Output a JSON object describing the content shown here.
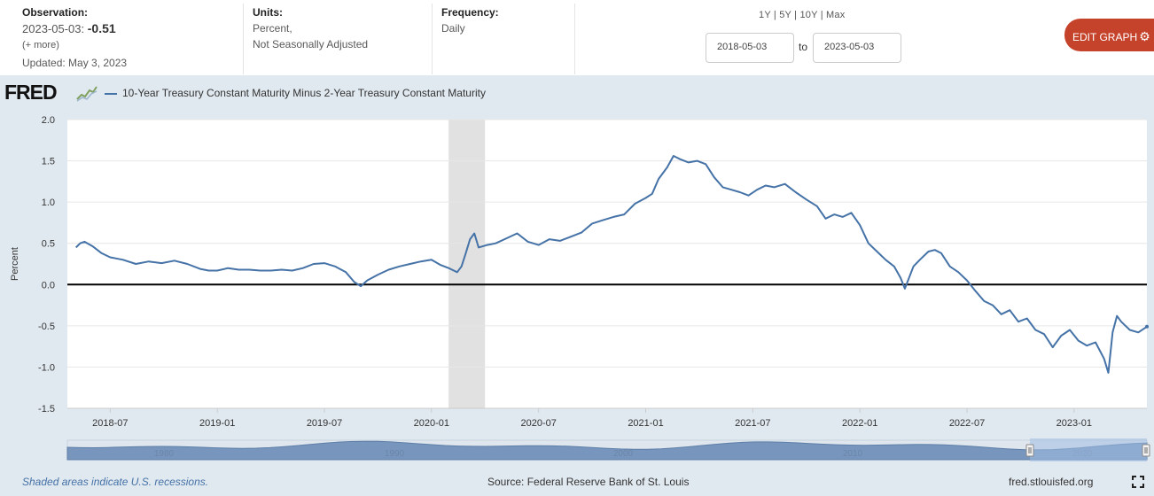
{
  "header": {
    "observation": {
      "label": "Observation:",
      "date": "2023-05-03:",
      "value": "-0.51",
      "more": "(+ more)",
      "updated": "Updated: May 3, 2023"
    },
    "units": {
      "label": "Units:",
      "line1": "Percent,",
      "line2": "Not Seasonally Adjusted"
    },
    "frequency": {
      "label": "Frequency:",
      "value": "Daily"
    },
    "ranges": [
      "1Y",
      "5Y",
      "10Y",
      "Max"
    ],
    "date_from": "2018-05-03",
    "date_to": "2023-05-03",
    "to_label": "to",
    "edit_button": "EDIT GRAPH",
    "edit_icon": "gear-icon"
  },
  "brand": "FRED",
  "series_title": "10-Year Treasury Constant Maturity Minus 2-Year Treasury Constant Maturity",
  "footer": {
    "recession_note": "Shaded areas indicate U.S. recessions.",
    "source": "Source: Federal Reserve Bank of St. Louis",
    "url": "fred.stlouisfed.org"
  },
  "colors": {
    "series": "#4572a7",
    "recession": "#e1e1e1",
    "button": "#c6432b",
    "background": "#e1e9f0"
  },
  "chart_data": {
    "type": "line",
    "title": "10-Year Treasury Constant Maturity Minus 2-Year Treasury Constant Maturity",
    "xlabel": "",
    "ylabel": "Percent",
    "ylim": [
      -1.5,
      2.0
    ],
    "yticks": [
      "2.0",
      "1.5",
      "1.0",
      "0.5",
      "0.0",
      "-0.5",
      "-1.0",
      "-1.5"
    ],
    "xlim": [
      2018.3,
      2023.34
    ],
    "xticks": [
      {
        "label": "2018-07",
        "t": 2018.5
      },
      {
        "label": "2019-01",
        "t": 2019.0
      },
      {
        "label": "2019-07",
        "t": 2019.5
      },
      {
        "label": "2020-01",
        "t": 2020.0
      },
      {
        "label": "2020-07",
        "t": 2020.5
      },
      {
        "label": "2021-01",
        "t": 2021.0
      },
      {
        "label": "2021-07",
        "t": 2021.5
      },
      {
        "label": "2022-01",
        "t": 2022.0
      },
      {
        "label": "2022-07",
        "t": 2022.5
      },
      {
        "label": "2023-01",
        "t": 2023.0
      }
    ],
    "recessions": [
      [
        2020.08,
        2020.25
      ]
    ],
    "navigator_labels": [
      "1980",
      "1990",
      "2000",
      "2010",
      "2020"
    ],
    "series": [
      {
        "name": "10-Year Treasury Constant Maturity Minus 2-Year Treasury Constant Maturity",
        "x": [
          2018.34,
          2018.36,
          2018.38,
          2018.42,
          2018.46,
          2018.5,
          2018.56,
          2018.62,
          2018.68,
          2018.74,
          2018.8,
          2018.86,
          2018.92,
          2018.96,
          2019.0,
          2019.05,
          2019.1,
          2019.15,
          2019.2,
          2019.25,
          2019.3,
          2019.35,
          2019.4,
          2019.45,
          2019.5,
          2019.55,
          2019.6,
          2019.64,
          2019.67,
          2019.7,
          2019.75,
          2019.8,
          2019.85,
          2019.9,
          2019.95,
          2020.0,
          2020.04,
          2020.08,
          2020.12,
          2020.14,
          2020.16,
          2020.18,
          2020.2,
          2020.22,
          2020.26,
          2020.3,
          2020.35,
          2020.4,
          2020.45,
          2020.5,
          2020.55,
          2020.6,
          2020.65,
          2020.7,
          2020.75,
          2020.8,
          2020.85,
          2020.9,
          2020.95,
          2021.0,
          2021.03,
          2021.06,
          2021.1,
          2021.13,
          2021.16,
          2021.2,
          2021.24,
          2021.28,
          2021.32,
          2021.36,
          2021.4,
          2021.44,
          2021.48,
          2021.52,
          2021.56,
          2021.6,
          2021.65,
          2021.7,
          2021.75,
          2021.8,
          2021.84,
          2021.88,
          2021.92,
          2021.96,
          2022.0,
          2022.04,
          2022.08,
          2022.12,
          2022.16,
          2022.19,
          2022.21,
          2022.25,
          2022.28,
          2022.32,
          2022.35,
          2022.38,
          2022.42,
          2022.46,
          2022.5,
          2022.54,
          2022.58,
          2022.62,
          2022.66,
          2022.7,
          2022.74,
          2022.78,
          2022.82,
          2022.86,
          2022.9,
          2022.94,
          2022.98,
          2023.02,
          2023.06,
          2023.1,
          2023.14,
          2023.16,
          2023.18,
          2023.2,
          2023.22,
          2023.26,
          2023.3,
          2023.34
        ],
        "values": [
          0.45,
          0.5,
          0.52,
          0.46,
          0.38,
          0.33,
          0.3,
          0.25,
          0.28,
          0.26,
          0.29,
          0.25,
          0.19,
          0.17,
          0.17,
          0.2,
          0.18,
          0.18,
          0.17,
          0.17,
          0.18,
          0.17,
          0.2,
          0.25,
          0.26,
          0.22,
          0.15,
          0.03,
          -0.02,
          0.05,
          0.12,
          0.18,
          0.22,
          0.25,
          0.28,
          0.3,
          0.24,
          0.2,
          0.15,
          0.22,
          0.38,
          0.55,
          0.62,
          0.45,
          0.48,
          0.5,
          0.56,
          0.62,
          0.52,
          0.48,
          0.55,
          0.53,
          0.58,
          0.63,
          0.74,
          0.78,
          0.82,
          0.85,
          0.98,
          1.05,
          1.1,
          1.28,
          1.42,
          1.56,
          1.52,
          1.48,
          1.5,
          1.46,
          1.3,
          1.18,
          1.15,
          1.12,
          1.08,
          1.15,
          1.2,
          1.18,
          1.22,
          1.12,
          1.03,
          0.95,
          0.8,
          0.85,
          0.82,
          0.87,
          0.72,
          0.5,
          0.4,
          0.3,
          0.22,
          0.08,
          -0.05,
          0.22,
          0.3,
          0.4,
          0.42,
          0.38,
          0.22,
          0.15,
          0.05,
          -0.08,
          -0.2,
          -0.25,
          -0.36,
          -0.31,
          -0.45,
          -0.41,
          -0.55,
          -0.6,
          -0.76,
          -0.62,
          -0.55,
          -0.68,
          -0.74,
          -0.7,
          -0.9,
          -1.07,
          -0.58,
          -0.38,
          -0.45,
          -0.55,
          -0.58,
          -0.51
        ]
      }
    ]
  }
}
